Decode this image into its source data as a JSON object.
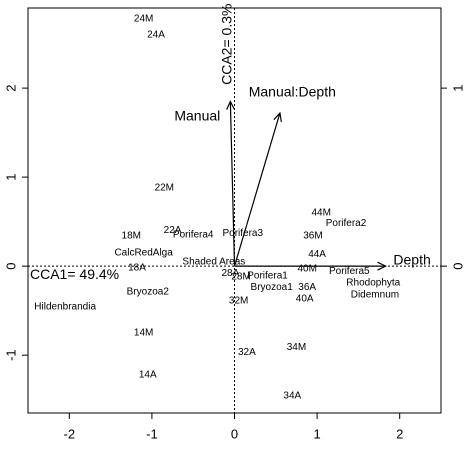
{
  "chart_data": {
    "type": "scatter",
    "title": "",
    "xlabel": "",
    "ylabel": "",
    "xlim": [
      -2.5,
      2.5
    ],
    "ylim": [
      -1.65,
      2.9
    ],
    "x_ticks": [
      -2,
      -1,
      0,
      1,
      2
    ],
    "y_ticks_left": [
      -1,
      0,
      1,
      2
    ],
    "y2_ticks_right": [
      0,
      1
    ],
    "y2_scale_per_left_unit": 0.5,
    "grid": false,
    "axis_annotations": [
      {
        "text": "CCA1= 49.4%",
        "x": -2.5,
        "y": 0.0
      },
      {
        "text": "CCA2= 0.3%",
        "x": -0.02,
        "y": 2.95
      }
    ],
    "sites": [
      {
        "label": "24M",
        "x": -1.1,
        "y": 2.78
      },
      {
        "label": "24A",
        "x": -0.95,
        "y": 2.6
      },
      {
        "label": "22M",
        "x": -0.85,
        "y": 0.88
      },
      {
        "label": "22A",
        "x": -0.75,
        "y": 0.4
      },
      {
        "label": "18M",
        "x": -1.25,
        "y": 0.34
      },
      {
        "label": "18A",
        "x": -1.18,
        "y": -0.02
      },
      {
        "label": "28A",
        "x": -0.05,
        "y": -0.08
      },
      {
        "label": "28M",
        "x": 0.08,
        "y": -0.12
      },
      {
        "label": "32M",
        "x": 0.05,
        "y": -0.39
      },
      {
        "label": "32A",
        "x": 0.15,
        "y": -0.97
      },
      {
        "label": "14M",
        "x": -1.1,
        "y": -0.75
      },
      {
        "label": "14A",
        "x": -1.05,
        "y": -1.22
      },
      {
        "label": "34M",
        "x": 0.75,
        "y": -0.91
      },
      {
        "label": "34A",
        "x": 0.7,
        "y": -1.46
      },
      {
        "label": "44M",
        "x": 1.05,
        "y": 0.6
      },
      {
        "label": "36M",
        "x": 0.95,
        "y": 0.34
      },
      {
        "label": "44A",
        "x": 1.0,
        "y": 0.13
      },
      {
        "label": "40M",
        "x": 0.88,
        "y": -0.03
      },
      {
        "label": "36A",
        "x": 0.88,
        "y": -0.24
      },
      {
        "label": "40A",
        "x": 0.85,
        "y": -0.37
      }
    ],
    "species": [
      {
        "label": "Porifera2",
        "x": 1.35,
        "y": 0.48
      },
      {
        "label": "Porifera4",
        "x": -0.5,
        "y": 0.35
      },
      {
        "label": "Porifera3",
        "x": 0.1,
        "y": 0.37
      },
      {
        "label": "CalcRedAlga",
        "x": -1.1,
        "y": 0.15
      },
      {
        "label": "Shaded Areas",
        "x": -0.25,
        "y": 0.05
      },
      {
        "label": "Porifera1",
        "x": 0.4,
        "y": -0.11
      },
      {
        "label": "Porifera5",
        "x": 1.39,
        "y": -0.06
      },
      {
        "label": "Rhodophyta",
        "x": 1.68,
        "y": -0.19
      },
      {
        "label": "Bryozoa1",
        "x": 0.45,
        "y": -0.24
      },
      {
        "label": "Bryozoa2",
        "x": -1.05,
        "y": -0.29
      },
      {
        "label": "Didemnum",
        "x": 1.7,
        "y": -0.32
      },
      {
        "label": "Hildenbrandia",
        "x": -2.05,
        "y": -0.46
      }
    ],
    "biplot_arrows": [
      {
        "label": "Manual",
        "x": -0.05,
        "y": 1.85
      },
      {
        "label": "Manual:Depth",
        "x": 0.55,
        "y": 1.72
      },
      {
        "label": "Depth",
        "x": 1.83,
        "y": 0.0
      }
    ],
    "biplot_arrow_labels": [
      {
        "label": "Manual",
        "x": -0.45,
        "y": 1.68
      },
      {
        "label": "Manual:Depth",
        "x": 0.7,
        "y": 1.95
      },
      {
        "label": "Depth",
        "x": 2.15,
        "y": 0.06
      }
    ]
  }
}
